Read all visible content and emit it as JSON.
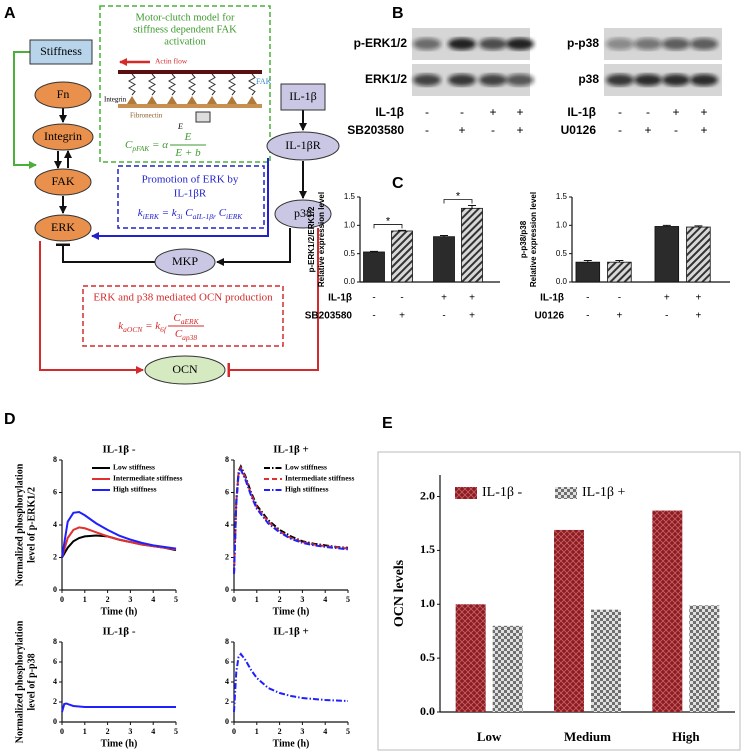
{
  "panel_labels": [
    "A",
    "B",
    "C",
    "D",
    "E"
  ],
  "diagram": {
    "nodes": {
      "stiffness": "Stiffness",
      "fn": "Fn",
      "integrin": "Integrin",
      "fak": "FAK",
      "erk": "ERK",
      "il1b": "IL-1β",
      "il1br": "IL-1βR",
      "p38": "p38",
      "mkp": "MKP",
      "ocn": "OCN"
    },
    "motor_clutch": {
      "title": [
        "Motor-clutch model for",
        "stiffness dependent FAK",
        "activation"
      ],
      "actin_flow": "Actin flow",
      "integrin": "Integrin",
      "fibronectin": "Fibronectin",
      "fak": "FAK",
      "e": "E",
      "formula": {
        "left": [
          {
            "t": "C",
            "sub": "pFAK"
          },
          {
            "t": " = α"
          }
        ],
        "num": [
          {
            "t": "E"
          }
        ],
        "den": [
          {
            "t": "E + b"
          }
        ]
      }
    },
    "erk_promotion": {
      "title": [
        "Promotion of ERK by",
        "IL-1βR"
      ],
      "formula": {
        "left": [
          {
            "t": "k",
            "sub": "iERK"
          },
          {
            "t": " = k",
            "sub": "3i"
          },
          {
            "t": " C",
            "sub": "aIL-1βr"
          },
          {
            "t": " C",
            "sub": "iERK"
          }
        ]
      }
    },
    "ocn_production": {
      "title": [
        "ERK and p38 mediated OCN production"
      ],
      "formula": {
        "left": [
          {
            "t": "k",
            "sub": "aOCN"
          },
          {
            "t": " = k",
            "sub": "6f"
          }
        ],
        "num": [
          {
            "t": "C",
            "sub": "aERK"
          }
        ],
        "den": [
          {
            "t": "C",
            "sub": "ap38"
          }
        ]
      }
    }
  },
  "blots": [
    {
      "rows": [
        "p-ERK1/2",
        "ERK1/2"
      ],
      "conditions": [
        {
          "label": "IL-1β",
          "signs": [
            "-",
            "-",
            "+",
            "+"
          ]
        },
        {
          "label": "SB203580",
          "signs": [
            "-",
            "+",
            "-",
            "+"
          ]
        }
      ]
    },
    {
      "rows": [
        "p-p38",
        "p38"
      ],
      "conditions": [
        {
          "label": "IL-1β",
          "signs": [
            "-",
            "-",
            "+",
            "+"
          ]
        },
        {
          "label": "U0126",
          "signs": [
            "-",
            "+",
            "-",
            "+"
          ]
        }
      ]
    }
  ],
  "chart_data": [
    {
      "type": "bar",
      "ylabel": [
        "p-ERK1/2/ERK1/2",
        "Relative expression level"
      ],
      "values": [
        0.53,
        0.9,
        0.8,
        1.3
      ],
      "errors": [
        0.01,
        0.01,
        0.02,
        0.05
      ],
      "patterns": [
        "solid",
        "hatched",
        "solid",
        "hatched"
      ],
      "color": "#2b2b2b",
      "ylim": [
        0,
        1.5
      ],
      "yticks": [
        {
          "value": 0,
          "label": "0.0"
        },
        {
          "value": 0.5,
          "label": "0.5"
        },
        {
          "value": 1,
          "label": "1.0"
        },
        {
          "value": 1.5,
          "label": "1.5"
        }
      ],
      "annotations": [
        "*",
        "*"
      ],
      "conditions": [
        {
          "label": "IL-1β",
          "signs": [
            "-",
            "-",
            "+",
            "+"
          ]
        },
        {
          "label": "SB203580",
          "signs": [
            "-",
            "+",
            "-",
            "+"
          ]
        }
      ]
    },
    {
      "type": "bar",
      "ylabel": [
        "p-p38/p38",
        "Relative expression level"
      ],
      "values": [
        0.35,
        0.35,
        0.98,
        0.97
      ],
      "errors": [
        0.03,
        0.03,
        0.02,
        0.02
      ],
      "patterns": [
        "solid",
        "hatched",
        "solid",
        "hatched"
      ],
      "color": "#2b2b2b",
      "ylim": [
        0,
        1.5
      ],
      "yticks": [
        {
          "value": 0,
          "label": "0.0"
        },
        {
          "value": 0.5,
          "label": "0.5"
        },
        {
          "value": 1,
          "label": "1.0"
        },
        {
          "value": 1.5,
          "label": "1.5"
        }
      ],
      "conditions": [
        {
          "label": "IL-1β",
          "signs": [
            "-",
            "-",
            "+",
            "+"
          ]
        },
        {
          "label": "U0126",
          "signs": [
            "-",
            "+",
            "-",
            "+"
          ]
        }
      ]
    },
    {
      "type": "line",
      "title": "IL-1β -",
      "xlabel": "Time (h)",
      "ylabel": [
        "Normalized phosphorylation",
        "level of p-ERK1/2"
      ],
      "x": [
        0,
        0.25,
        0.5,
        0.75,
        1,
        1.5,
        2,
        2.5,
        3,
        3.5,
        4,
        4.5,
        5
      ],
      "xlim": [
        0,
        5
      ],
      "xticks": [
        0,
        1,
        2,
        3,
        4,
        5
      ],
      "ylim": [
        0,
        8
      ],
      "yticks": [
        0,
        2,
        4,
        6,
        8
      ],
      "legend": "upper right",
      "series": [
        {
          "name": "Low stiffness",
          "color": "#000000",
          "line_style": "solid",
          "values": [
            2.0,
            2.6,
            3.0,
            3.2,
            3.3,
            3.35,
            3.3,
            3.1,
            2.95,
            2.8,
            2.7,
            2.6,
            2.45
          ]
        },
        {
          "name": "Intermediate stiffness",
          "color": "#e03030",
          "line_style": "solid",
          "values": [
            2.0,
            3.2,
            3.7,
            3.85,
            3.8,
            3.55,
            3.3,
            3.1,
            2.95,
            2.8,
            2.7,
            2.6,
            2.5
          ]
        },
        {
          "name": "High stiffness",
          "color": "#2020ff",
          "line_style": "solid",
          "values": [
            2.0,
            4.2,
            4.75,
            4.8,
            4.6,
            4.1,
            3.7,
            3.35,
            3.1,
            2.9,
            2.75,
            2.65,
            2.55
          ]
        }
      ]
    },
    {
      "type": "line",
      "title": "IL-1β +",
      "xlabel": "Time (h)",
      "x": [
        0,
        0.1,
        0.2,
        0.3,
        0.5,
        0.75,
        1,
        1.5,
        2,
        2.5,
        3,
        3.5,
        4,
        4.5,
        5
      ],
      "xlim": [
        0,
        5
      ],
      "xticks": [
        0,
        1,
        2,
        3,
        4,
        5
      ],
      "ylim": [
        0,
        8
      ],
      "yticks": [
        0,
        2,
        4,
        6,
        8
      ],
      "legend": "upper right",
      "series": [
        {
          "name": "Low stiffness",
          "color": "#000000",
          "line_style": "dashdot",
          "values": [
            1.0,
            5.5,
            7.3,
            7.6,
            7.0,
            6.0,
            5.2,
            4.3,
            3.7,
            3.3,
            3.0,
            2.85,
            2.75,
            2.65,
            2.6
          ]
        },
        {
          "name": "Intermediate stiffness",
          "color": "#e03030",
          "line_style": "dashed",
          "values": [
            1.0,
            5.4,
            7.2,
            7.5,
            6.9,
            5.9,
            5.1,
            4.2,
            3.6,
            3.2,
            2.95,
            2.8,
            2.7,
            2.62,
            2.55
          ]
        },
        {
          "name": "High stiffness",
          "color": "#2020ff",
          "line_style": "dashdot",
          "values": [
            1.0,
            5.3,
            7.1,
            7.4,
            6.8,
            5.8,
            5.0,
            4.1,
            3.55,
            3.15,
            2.9,
            2.75,
            2.65,
            2.58,
            2.5
          ]
        }
      ]
    },
    {
      "type": "line",
      "title": "IL-1β -",
      "xlabel": "Time (h)",
      "ylabel": [
        "Normalized phosphorylation",
        "level of p-p38"
      ],
      "x": [
        0,
        0.1,
        0.2,
        0.3,
        0.5,
        0.75,
        1,
        1.5,
        2,
        2.5,
        3,
        3.5,
        4,
        4.5,
        5
      ],
      "xlim": [
        0,
        5
      ],
      "xticks": [
        0,
        1,
        2,
        3,
        4,
        5
      ],
      "ylim": [
        0,
        8
      ],
      "yticks": [
        0,
        2,
        4,
        6,
        8
      ],
      "series": [
        {
          "color": "#2020ff",
          "line_style": "solid",
          "values": [
            1.0,
            1.8,
            1.85,
            1.75,
            1.6,
            1.55,
            1.5,
            1.5,
            1.5,
            1.5,
            1.5,
            1.5,
            1.5,
            1.5,
            1.5
          ]
        }
      ]
    },
    {
      "type": "line",
      "title": "IL-1β +",
      "xlabel": "Time (h)",
      "x": [
        0,
        0.1,
        0.2,
        0.3,
        0.5,
        0.75,
        1,
        1.5,
        2,
        2.5,
        3,
        3.5,
        4,
        4.5,
        5
      ],
      "xlim": [
        0,
        5
      ],
      "xticks": [
        0,
        1,
        2,
        3,
        4,
        5
      ],
      "ylim": [
        0,
        8
      ],
      "yticks": [
        0,
        2,
        4,
        6,
        8
      ],
      "series": [
        {
          "color": "#2020ff",
          "line_style": "dashdot",
          "values": [
            1.0,
            5.0,
            6.5,
            6.8,
            6.2,
            5.2,
            4.4,
            3.4,
            2.9,
            2.6,
            2.4,
            2.3,
            2.2,
            2.15,
            2.1
          ]
        }
      ]
    },
    {
      "type": "bar",
      "ylabel": [
        "OCN  levels"
      ],
      "categories": [
        "Low",
        "Medium",
        "High"
      ],
      "ylim": [
        0,
        2.2
      ],
      "yticks": [
        {
          "value": 0,
          "label": "0.0"
        },
        {
          "value": 0.5,
          "label": "0.5"
        },
        {
          "value": 1,
          "label": "1.0"
        },
        {
          "value": 1.5,
          "label": "1.5"
        },
        {
          "value": 2,
          "label": "2.0"
        }
      ],
      "legend": "upper left",
      "series": [
        {
          "name": "IL-1β -",
          "color": "#8b1c24",
          "pattern": "crosshatch",
          "values": [
            1.0,
            1.69,
            1.87
          ]
        },
        {
          "name": "IL-1β +",
          "color": "#6f6f6f",
          "pattern": "checker",
          "values": [
            0.8,
            0.95,
            0.99
          ]
        }
      ]
    }
  ]
}
